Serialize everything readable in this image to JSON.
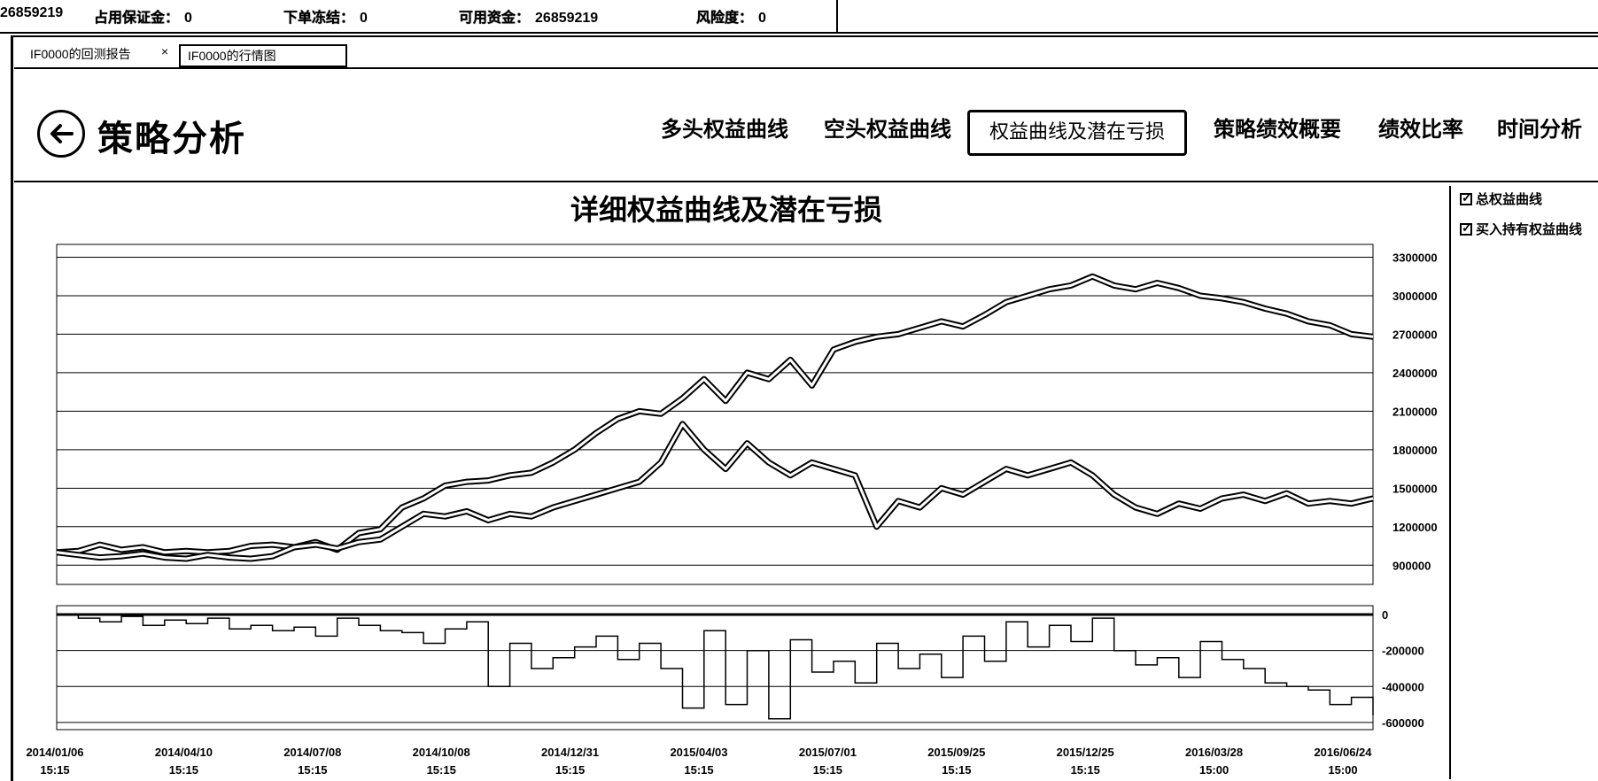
{
  "status_bar": {
    "balance_value": "26859219",
    "margin_label": "占用保证金：",
    "margin_value": "0",
    "frozen_label": "下单冻结：",
    "frozen_value": "0",
    "available_label": "可用资金：",
    "available_value": "26859219",
    "risk_label": "风险度：",
    "risk_value": "0"
  },
  "tabs": [
    {
      "label": "IF0000的回测报告",
      "active": false
    },
    {
      "label": "IF0000的行情图",
      "active": true
    }
  ],
  "tab_close": "×",
  "header": {
    "title": "策略分析",
    "nav": [
      {
        "label": "多头权益曲线",
        "active": false
      },
      {
        "label": "空头权益曲线",
        "active": false
      },
      {
        "label": "权益曲线及潜在亏损",
        "active": true
      },
      {
        "label": "策略绩效概要",
        "active": false
      },
      {
        "label": "绩效比率",
        "active": false
      },
      {
        "label": "时间分析",
        "active": false
      }
    ]
  },
  "legend": [
    {
      "label": "总权益曲线",
      "checked": true
    },
    {
      "label": "买入持有权益曲线",
      "checked": true
    }
  ],
  "chart_data": [
    {
      "type": "line",
      "title": "详细权益曲线及潜在亏损",
      "y_ticks": [
        900000,
        1200000,
        1500000,
        1800000,
        2100000,
        2400000,
        2700000,
        3000000,
        3300000
      ],
      "ylim": [
        750000,
        3400000
      ],
      "series": [
        {
          "name": "总权益曲线",
          "values": [
            1000000,
            1010000,
            1060000,
            1020000,
            1040000,
            1000000,
            1010000,
            1000000,
            1010000,
            1050000,
            1060000,
            1040000,
            1080000,
            1020000,
            1150000,
            1180000,
            1350000,
            1420000,
            1520000,
            1550000,
            1560000,
            1600000,
            1620000,
            1700000,
            1800000,
            1930000,
            2040000,
            2100000,
            2080000,
            2200000,
            2350000,
            2180000,
            2400000,
            2350000,
            2500000,
            2300000,
            2580000,
            2640000,
            2680000,
            2700000,
            2750000,
            2800000,
            2760000,
            2850000,
            2950000,
            3000000,
            3050000,
            3080000,
            3150000,
            3080000,
            3050000,
            3100000,
            3060000,
            3000000,
            2980000,
            2950000,
            2900000,
            2860000,
            2800000,
            2770000,
            2700000,
            2680000
          ]
        },
        {
          "name": "买入持有权益曲线",
          "values": [
            1000000,
            980000,
            960000,
            970000,
            990000,
            960000,
            950000,
            980000,
            960000,
            950000,
            970000,
            1040000,
            1060000,
            1030000,
            1080000,
            1100000,
            1200000,
            1300000,
            1280000,
            1320000,
            1250000,
            1300000,
            1280000,
            1350000,
            1400000,
            1450000,
            1500000,
            1550000,
            1700000,
            2000000,
            1800000,
            1650000,
            1850000,
            1700000,
            1600000,
            1700000,
            1650000,
            1600000,
            1200000,
            1400000,
            1350000,
            1500000,
            1450000,
            1550000,
            1650000,
            1600000,
            1650000,
            1700000,
            1600000,
            1450000,
            1350000,
            1300000,
            1380000,
            1340000,
            1420000,
            1450000,
            1400000,
            1460000,
            1380000,
            1400000,
            1380000,
            1420000
          ]
        }
      ]
    },
    {
      "type": "area",
      "title": "",
      "y_ticks": [
        0,
        -200000,
        -400000,
        -600000
      ],
      "ylim": [
        -640000,
        20000
      ],
      "x_labels": [
        [
          "2014/01/06",
          "15:15"
        ],
        [
          "2014/04/10",
          "15:15"
        ],
        [
          "2014/07/08",
          "15:15"
        ],
        [
          "2014/10/08",
          "15:15"
        ],
        [
          "2014/12/31",
          "15:15"
        ],
        [
          "2015/04/03",
          "15:15"
        ],
        [
          "2015/07/01",
          "15:15"
        ],
        [
          "2015/09/25",
          "15:15"
        ],
        [
          "2015/12/25",
          "15:15"
        ],
        [
          "2016/03/28",
          "15:00"
        ],
        [
          "2016/06/24",
          "15:00"
        ]
      ],
      "series": [
        {
          "name": "",
          "values": [
            0,
            -20000,
            -40000,
            -10000,
            -60000,
            -30000,
            -50000,
            -20000,
            -80000,
            -60000,
            -90000,
            -70000,
            -120000,
            -20000,
            -60000,
            -90000,
            -100000,
            -160000,
            -80000,
            -40000,
            -400000,
            -160000,
            -300000,
            -240000,
            -180000,
            -120000,
            -250000,
            -160000,
            -300000,
            -520000,
            -90000,
            -500000,
            -200000,
            -580000,
            -140000,
            -320000,
            -260000,
            -380000,
            -160000,
            -300000,
            -220000,
            -350000,
            -120000,
            -260000,
            -40000,
            -180000,
            -60000,
            -150000,
            -20000,
            -200000,
            -280000,
            -240000,
            -350000,
            -150000,
            -250000,
            -300000,
            -380000,
            -400000,
            -420000,
            -500000,
            -460000,
            -560000
          ]
        }
      ]
    }
  ]
}
